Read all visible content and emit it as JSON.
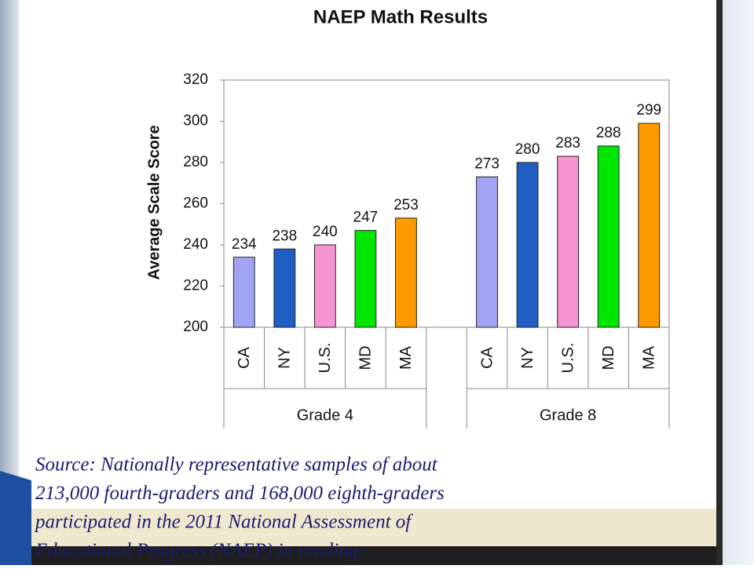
{
  "chart_data": {
    "type": "bar",
    "title": "NAEP Math Results",
    "y_label": "Average Scale Score",
    "categories": [
      "CA",
      "NY",
      "U.S.",
      "MD",
      "MA",
      null,
      "CA",
      "NY",
      "U.S.",
      "MD",
      "MA"
    ],
    "values": [
      234,
      238,
      240,
      247,
      253,
      null,
      273,
      280,
      283,
      288,
      299
    ],
    "colors": [
      "#a3a3f5",
      "#1f5fc4",
      "#f894d2",
      "#00e600",
      "#ff9a00",
      null,
      "#a3a3f5",
      "#1f5fc4",
      "#f894d2",
      "#00e600",
      "#ff9a00"
    ],
    "groups": [
      "Grade 4",
      "Grade 8"
    ],
    "ylim": [
      200,
      320
    ],
    "yticks": [
      200,
      220,
      240,
      260,
      280,
      300,
      320
    ]
  },
  "source": [
    "Source: Nationally representative samples of about",
    "213,000 fourth-graders and 168,000 eighth-graders",
    "participated in the 2011 National Assessment of",
    "Educational Progress (NAEP) in reading."
  ]
}
